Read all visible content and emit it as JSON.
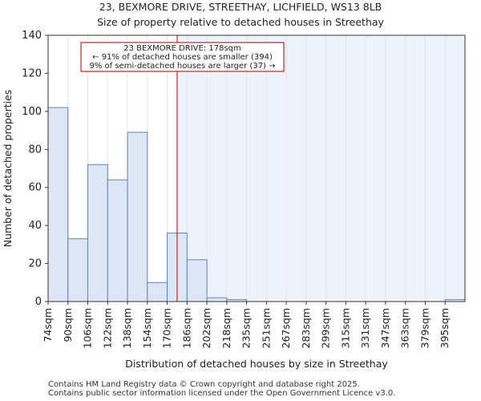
{
  "title_line1": "23, BEXMORE DRIVE, STREETHAY, LICHFIELD, WS13 8LB",
  "title_line2": "Size of property relative to detached houses in Streethay",
  "footer_line1": "Contains HM Land Registry data © Crown copyright and database right 2025.",
  "footer_line2": "Contains public sector information licensed under the Open Government Licence v3.0.",
  "colors": {
    "bar_fill": "#dce6f4",
    "bar_stroke": "#5a84c2",
    "highlight_band": "#eef2fa",
    "marker_line": "#cc0000",
    "annotation_border": "#aa0000"
  },
  "chart_data": {
    "type": "bar",
    "title": "Size of property relative to detached houses in Streethay",
    "xlabel": "Distribution of detached houses by size in Streethay",
    "ylabel": "Number of detached properties",
    "ylim": [
      0,
      140
    ],
    "yticks": [
      0,
      20,
      40,
      60,
      80,
      100,
      120,
      140
    ],
    "categories": [
      "74sqm",
      "90sqm",
      "106sqm",
      "122sqm",
      "138sqm",
      "154sqm",
      "170sqm",
      "186sqm",
      "202sqm",
      "218sqm",
      "235sqm",
      "251sqm",
      "267sqm",
      "283sqm",
      "299sqm",
      "315sqm",
      "331sqm",
      "347sqm",
      "363sqm",
      "379sqm",
      "395sqm"
    ],
    "bin_edges": [
      74,
      90,
      106,
      122,
      138,
      154,
      170,
      186,
      202,
      218,
      235,
      251,
      267,
      283,
      299,
      315,
      331,
      347,
      363,
      379,
      395
    ],
    "values": [
      102,
      33,
      72,
      64,
      89,
      10,
      36,
      22,
      2,
      1,
      0,
      0,
      0,
      0,
      0,
      0,
      0,
      0,
      0,
      0,
      1
    ],
    "marker_value": 178,
    "annotation": {
      "line1": "23 BEXMORE DRIVE: 178sqm",
      "line2": "← 91% of detached houses are smaller (394)",
      "line3": "9% of semi-detached houses are larger (37) →"
    }
  }
}
